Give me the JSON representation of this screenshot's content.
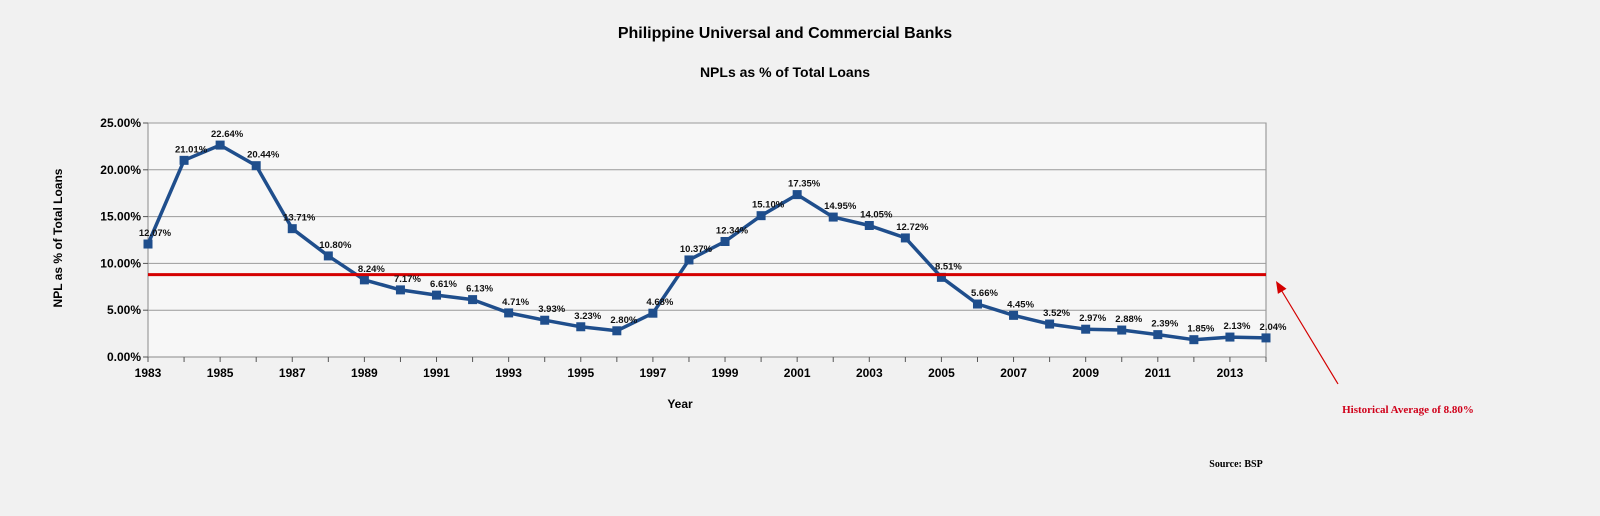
{
  "chart_data": {
    "type": "line",
    "title": "Philippine Universal and Commercial Banks",
    "subtitle": "NPLs as % of Total Loans",
    "xlabel": "Year",
    "ylabel": "NPL as % of Total Loans",
    "x": [
      1983,
      1984,
      1985,
      1986,
      1987,
      1988,
      1989,
      1990,
      1991,
      1992,
      1993,
      1994,
      1995,
      1996,
      1997,
      1998,
      1999,
      2000,
      2001,
      2002,
      2003,
      2004,
      2005,
      2006,
      2007,
      2008,
      2009,
      2010,
      2011,
      2012,
      2013,
      2014
    ],
    "x_tick_labels": [
      "1983",
      "1985",
      "1987",
      "1989",
      "1991",
      "1993",
      "1995",
      "1997",
      "1999",
      "2001",
      "2003",
      "2005",
      "2007",
      "2009",
      "2011",
      "2013"
    ],
    "series": [
      {
        "values": [
          12.07,
          21.01,
          22.64,
          20.44,
          13.71,
          10.8,
          8.24,
          7.17,
          6.61,
          6.13,
          4.71,
          3.93,
          3.23,
          2.8,
          4.68,
          10.37,
          12.34,
          15.1,
          17.35,
          14.95,
          14.05,
          12.72,
          8.51,
          5.66,
          4.45,
          3.52,
          2.97,
          2.88,
          2.39,
          1.85,
          2.13,
          2.04
        ],
        "labels": [
          "12.07%",
          "21.01%",
          "22.64%",
          "20.44%",
          "13.71%",
          "10.80%",
          "8.24%",
          "7.17%",
          "6.61%",
          "6.13%",
          "4.71%",
          "3.93%",
          "3.23%",
          "2.80%",
          "4.68%",
          "10.37%",
          "12.34%",
          "15.10%",
          "17.35%",
          "14.95%",
          "14.05%",
          "12.72%",
          "8.51%",
          "5.66%",
          "4.45%",
          "3.52%",
          "2.97%",
          "2.88%",
          "2.39%",
          "1.85%",
          "2.13%",
          "2.04%"
        ],
        "color": "#1f4e8c"
      }
    ],
    "y_ticks": [
      0,
      5,
      10,
      15,
      20,
      25
    ],
    "y_tick_labels": [
      "0.00%",
      "5.00%",
      "10.00%",
      "15.00%",
      "20.00%",
      "25.00%"
    ],
    "ylim": [
      0,
      25
    ],
    "reference_line": {
      "value": 8.8,
      "color": "#d40000"
    },
    "annotation": "Historical Average of 8.80%",
    "source": "Source: BSP",
    "grid": true,
    "legend": "none"
  }
}
